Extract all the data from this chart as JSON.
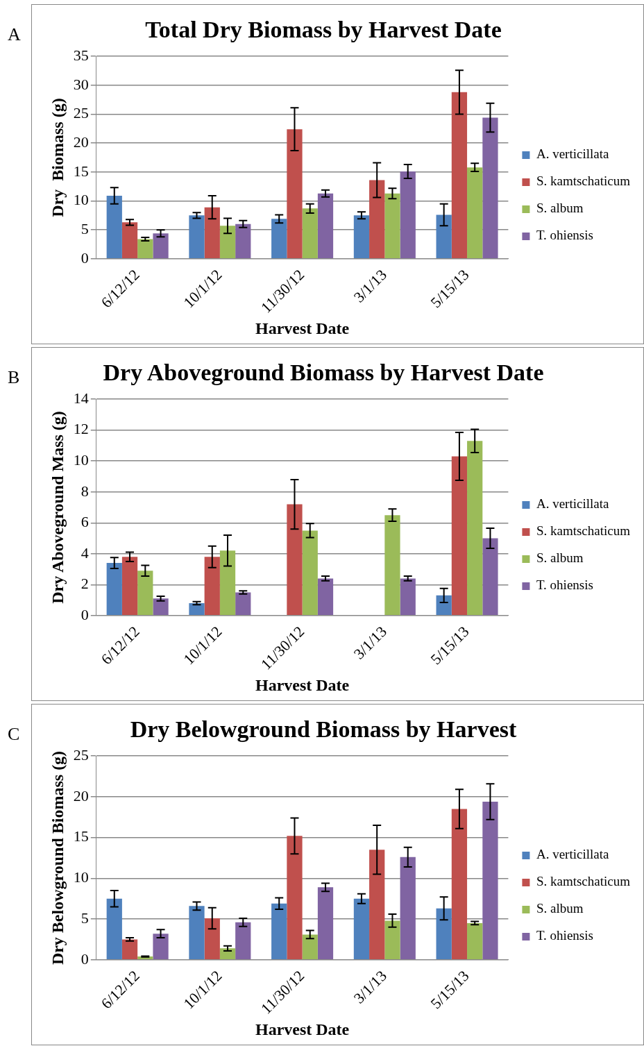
{
  "chart_data": [
    {
      "type": "bar",
      "title": "Total Dry Biomass by Harvest Date",
      "xlabel": "Harvest Date",
      "ylabel": "Dry  Biomass (g)",
      "annotations": [
        "A"
      ],
      "categories": [
        "6/12/12",
        "10/1/12",
        "11/30/12",
        "3/1/13",
        "5/15/13"
      ],
      "ylim": [
        0,
        35
      ],
      "yticks": [
        0,
        5,
        10,
        15,
        20,
        25,
        30,
        35
      ],
      "grid": "y",
      "legend": "right",
      "series": [
        {
          "name": "A. verticillata",
          "color": "#4f81bd",
          "values": [
            10.9,
            7.5,
            6.9,
            7.5,
            7.6
          ],
          "errors": [
            1.4,
            0.5,
            0.7,
            0.6,
            1.9
          ]
        },
        {
          "name": "S. kamtschaticum",
          "color": "#c0504d",
          "values": [
            6.3,
            8.9,
            22.4,
            13.6,
            28.8
          ],
          "errors": [
            0.5,
            2,
            3.7,
            3,
            3.8
          ]
        },
        {
          "name": "S. album",
          "color": "#9bbb59",
          "values": [
            3.4,
            5.7,
            8.7,
            11.3,
            15.8
          ],
          "errors": [
            0.3,
            1.3,
            0.8,
            0.9,
            0.7
          ]
        },
        {
          "name": "T. ohiensis",
          "color": "#8064a2",
          "values": [
            4.4,
            6.0,
            11.3,
            15.1,
            24.4
          ],
          "errors": [
            0.6,
            0.6,
            0.6,
            1.2,
            2.5
          ]
        }
      ]
    },
    {
      "type": "bar",
      "title": "Dry Aboveground Biomass by Harvest Date",
      "xlabel": "Harvest Date",
      "ylabel": "Dry Aboveground Mass (g)",
      "annotations": [
        "B"
      ],
      "categories": [
        "6/12/12",
        "10/1/12",
        "11/30/12",
        "3/1/13",
        "5/15/13"
      ],
      "ylim": [
        0,
        14
      ],
      "yticks": [
        0,
        2,
        4,
        6,
        8,
        10,
        12,
        14
      ],
      "grid": "y",
      "legend": "right",
      "series": [
        {
          "name": "A. verticillata",
          "color": "#4f81bd",
          "values": [
            3.4,
            0.8,
            null,
            null,
            1.3
          ],
          "errors": [
            0.35,
            0.1,
            null,
            null,
            0.45
          ]
        },
        {
          "name": "S. kamtschaticum",
          "color": "#c0504d",
          "values": [
            3.8,
            3.8,
            7.2,
            null,
            10.3
          ],
          "errors": [
            0.3,
            0.7,
            1.6,
            null,
            1.55
          ]
        },
        {
          "name": "S. album",
          "color": "#9bbb59",
          "values": [
            2.9,
            4.2,
            5.5,
            6.5,
            11.3
          ],
          "errors": [
            0.35,
            1,
            0.45,
            0.4,
            0.75
          ]
        },
        {
          "name": "T. ohiensis",
          "color": "#8064a2",
          "values": [
            1.1,
            1.5,
            2.4,
            2.4,
            5.0
          ],
          "errors": [
            0.15,
            0.1,
            0.15,
            0.15,
            0.65
          ]
        }
      ]
    },
    {
      "type": "bar",
      "title": "Dry Belowground Biomass by Harvest",
      "xlabel": "Harvest Date",
      "ylabel": "Dry Belowground Biomass (g)",
      "annotations": [
        "C"
      ],
      "categories": [
        "6/12/12",
        "10/1/12",
        "11/30/12",
        "3/1/13",
        "5/15/13"
      ],
      "ylim": [
        0,
        25
      ],
      "yticks": [
        0,
        5,
        10,
        15,
        20,
        25
      ],
      "grid": "y",
      "legend": "right",
      "series": [
        {
          "name": "A. verticillata",
          "color": "#4f81bd",
          "values": [
            7.5,
            6.6,
            6.9,
            7.5,
            6.3
          ],
          "errors": [
            1,
            0.5,
            0.7,
            0.6,
            1.4
          ]
        },
        {
          "name": "S. kamtschaticum",
          "color": "#c0504d",
          "values": [
            2.5,
            5.1,
            15.2,
            13.5,
            18.5
          ],
          "errors": [
            0.2,
            1.3,
            2.2,
            3,
            2.4
          ]
        },
        {
          "name": "S. album",
          "color": "#9bbb59",
          "values": [
            0.4,
            1.4,
            3.1,
            4.8,
            4.5
          ],
          "errors": [
            0.05,
            0.3,
            0.5,
            0.8,
            0.2
          ]
        },
        {
          "name": "T. ohiensis",
          "color": "#8064a2",
          "values": [
            3.2,
            4.6,
            8.9,
            12.6,
            19.4
          ],
          "errors": [
            0.5,
            0.5,
            0.5,
            1.2,
            2.2
          ]
        }
      ]
    }
  ]
}
